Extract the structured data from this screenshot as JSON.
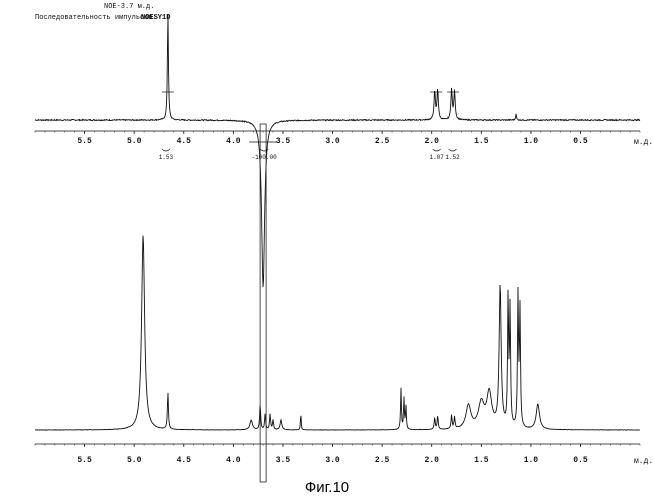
{
  "header": {
    "nmr_setting": "NOE-3.7 м.д.",
    "sequence_label": "Последовательность импульсов:",
    "sequence_value": "NOESY1D"
  },
  "caption": "Фиг.10",
  "chart_data": [
    {
      "type": "line",
      "name": "top-noe-spectrum",
      "xlim": [
        6.0,
        -0.1
      ],
      "x_ticks": [
        5.5,
        5.0,
        4.5,
        4.0,
        3.5,
        3.0,
        2.5,
        2.0,
        1.5,
        1.0,
        0.5
      ],
      "tick_labels": [
        "5.5",
        "5.0",
        "4.5",
        "4.0",
        "3.5",
        "3.0",
        "2.5",
        "2.0",
        "1.5",
        "1.0",
        "0.5"
      ],
      "xlabel": "м.д.",
      "peaks": [
        {
          "ppm": 4.66,
          "height": 1.0,
          "width": 0.006
        },
        {
          "ppm": 1.97,
          "height": 0.26,
          "width": 0.008
        },
        {
          "ppm": 1.94,
          "height": 0.28,
          "width": 0.008
        },
        {
          "ppm": 1.8,
          "height": 0.28,
          "width": 0.008
        },
        {
          "ppm": 1.77,
          "height": 0.26,
          "width": 0.008
        },
        {
          "ppm": 1.15,
          "height": 0.06,
          "width": 0.005
        },
        {
          "ppm": 3.7,
          "height": -1.55,
          "width": 0.018
        }
      ],
      "integrals": [
        {
          "ppm": 4.68,
          "label": "1.53"
        },
        {
          "ppm": 3.69,
          "label": "-100.00"
        },
        {
          "ppm": 1.95,
          "label": "1.07"
        },
        {
          "ppm": 1.79,
          "label": "1.52"
        }
      ]
    },
    {
      "type": "line",
      "name": "bottom-1h-spectrum",
      "xlim": [
        6.0,
        -0.1
      ],
      "x_ticks": [
        5.5,
        5.0,
        4.5,
        4.0,
        3.5,
        3.0,
        2.5,
        2.0,
        1.5,
        1.0,
        0.5
      ],
      "tick_labels": [
        "5.5",
        "5.0",
        "4.5",
        "4.0",
        "3.5",
        "3.0",
        "2.5",
        "2.0",
        "1.5",
        "1.0",
        "0.5"
      ],
      "xlabel": "м.д.",
      "peaks": [
        {
          "ppm": 4.91,
          "height": 1.0,
          "width": 0.018
        },
        {
          "ppm": 4.66,
          "height": 0.19,
          "width": 0.006
        },
        {
          "ppm": 3.82,
          "height": 0.05,
          "width": 0.015
        },
        {
          "ppm": 3.73,
          "height": 0.13,
          "width": 0.006
        },
        {
          "ppm": 3.68,
          "height": 0.08,
          "width": 0.006
        },
        {
          "ppm": 3.63,
          "height": 0.08,
          "width": 0.006
        },
        {
          "ppm": 3.6,
          "height": 0.05,
          "width": 0.006
        },
        {
          "ppm": 3.52,
          "height": 0.05,
          "width": 0.01
        },
        {
          "ppm": 3.32,
          "height": 0.09,
          "width": 0.004
        },
        {
          "ppm": 2.31,
          "height": 0.21,
          "width": 0.005
        },
        {
          "ppm": 2.28,
          "height": 0.16,
          "width": 0.005
        },
        {
          "ppm": 2.26,
          "height": 0.12,
          "width": 0.005
        },
        {
          "ppm": 1.97,
          "height": 0.06,
          "width": 0.006
        },
        {
          "ppm": 1.94,
          "height": 0.07,
          "width": 0.006
        },
        {
          "ppm": 1.8,
          "height": 0.07,
          "width": 0.006
        },
        {
          "ppm": 1.77,
          "height": 0.06,
          "width": 0.006
        },
        {
          "ppm": 1.63,
          "height": 0.12,
          "width": 0.03
        },
        {
          "ppm": 1.5,
          "height": 0.13,
          "width": 0.035
        },
        {
          "ppm": 1.42,
          "height": 0.18,
          "width": 0.03
        },
        {
          "ppm": 1.31,
          "height": 0.73,
          "width": 0.012
        },
        {
          "ppm": 1.23,
          "height": 0.66,
          "width": 0.006
        },
        {
          "ppm": 1.21,
          "height": 0.6,
          "width": 0.006
        },
        {
          "ppm": 1.13,
          "height": 0.67,
          "width": 0.006
        },
        {
          "ppm": 1.11,
          "height": 0.6,
          "width": 0.006
        },
        {
          "ppm": 0.93,
          "height": 0.13,
          "width": 0.02
        }
      ]
    }
  ]
}
